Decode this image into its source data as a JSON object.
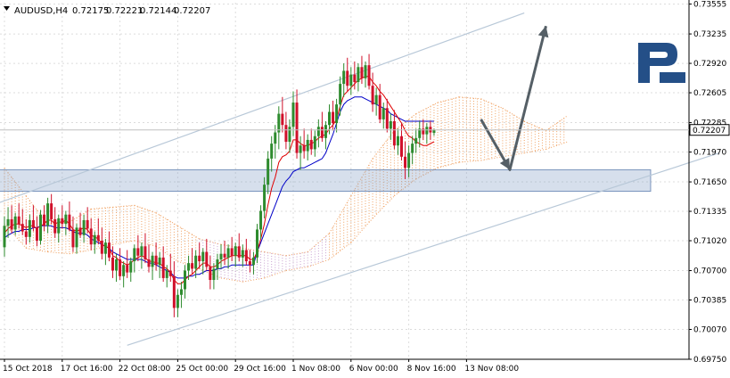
{
  "header": {
    "symbol": "AUDUSD,H4",
    "open": "0.72175",
    "high": "0.72221",
    "low": "0.72144",
    "close": "0.72207"
  },
  "logo": {
    "text": "R"
  },
  "colors": {
    "background": "#ffffff",
    "bull": "#2e8b2e",
    "bear": "#d0102a",
    "tenkan": "#e00000",
    "kijun": "#0000c8",
    "cloud_bull": "#f0a060",
    "cloud_bear": "#c8a0d0",
    "channel": "#b8c8d8",
    "zone": "#8aa4c8",
    "arrow": "#555f66",
    "logo": "#244f87",
    "price_box": "#ffffff"
  },
  "chart_data": {
    "type": "candlestick",
    "instrument": "AUDUSD",
    "timeframe": "H4",
    "current_price": "0.72207",
    "ylim": [
      0.6975,
      0.7357
    ],
    "yticks": [
      "0.73555",
      "0.73235",
      "0.72920",
      "0.72605",
      "0.72285",
      "0.71970",
      "0.71650",
      "0.71335",
      "0.71020",
      "0.70700",
      "0.70385",
      "0.70070",
      "0.69750"
    ],
    "xticks": [
      "15 Oct 2018",
      "17 Oct 16:00",
      "22 Oct 08:00",
      "25 Oct 00:00",
      "29 Oct 16:00",
      "1 Nov 08:00",
      "6 Nov 00:00",
      "8 Nov 16:00",
      "13 Nov 08:00"
    ],
    "xtick_index": [
      0,
      16,
      32,
      48,
      64,
      80,
      96,
      112,
      128
    ],
    "candles": [
      [
        0.7095,
        0.7128,
        0.7085,
        0.7118
      ],
      [
        0.7118,
        0.7138,
        0.7105,
        0.7125
      ],
      [
        0.7125,
        0.714,
        0.711,
        0.7114
      ],
      [
        0.7114,
        0.7132,
        0.7108,
        0.7128
      ],
      [
        0.7128,
        0.7142,
        0.7115,
        0.712
      ],
      [
        0.712,
        0.7136,
        0.7108,
        0.7112
      ],
      [
        0.7112,
        0.7125,
        0.7098,
        0.7106
      ],
      [
        0.7106,
        0.713,
        0.71,
        0.7124
      ],
      [
        0.7124,
        0.714,
        0.7112,
        0.7116
      ],
      [
        0.7116,
        0.7128,
        0.7096,
        0.7102
      ],
      [
        0.7102,
        0.7135,
        0.7098,
        0.713
      ],
      [
        0.713,
        0.714,
        0.7112,
        0.7118
      ],
      [
        0.7118,
        0.7148,
        0.711,
        0.7142
      ],
      [
        0.7142,
        0.7152,
        0.712,
        0.7125
      ],
      [
        0.7125,
        0.7138,
        0.7105,
        0.711
      ],
      [
        0.711,
        0.713,
        0.71,
        0.7126
      ],
      [
        0.7126,
        0.714,
        0.7115,
        0.712
      ],
      [
        0.712,
        0.7134,
        0.7108,
        0.713
      ],
      [
        0.713,
        0.7144,
        0.7112,
        0.7114
      ],
      [
        0.7114,
        0.7128,
        0.709,
        0.7095
      ],
      [
        0.7095,
        0.712,
        0.7088,
        0.7116
      ],
      [
        0.7116,
        0.7132,
        0.7105,
        0.7108
      ],
      [
        0.7108,
        0.713,
        0.71,
        0.7124
      ],
      [
        0.7124,
        0.7138,
        0.711,
        0.7115
      ],
      [
        0.7115,
        0.7126,
        0.7092,
        0.7098
      ],
      [
        0.7098,
        0.7112,
        0.7088,
        0.7108
      ],
      [
        0.7108,
        0.7126,
        0.7098,
        0.7102
      ],
      [
        0.7102,
        0.7116,
        0.7082,
        0.7088
      ],
      [
        0.7088,
        0.7104,
        0.7076,
        0.71
      ],
      [
        0.71,
        0.7112,
        0.708,
        0.7084
      ],
      [
        0.7084,
        0.7096,
        0.7062,
        0.707
      ],
      [
        0.707,
        0.7088,
        0.7058,
        0.7082
      ],
      [
        0.7082,
        0.7094,
        0.706,
        0.7064
      ],
      [
        0.7064,
        0.708,
        0.7052,
        0.7076
      ],
      [
        0.7076,
        0.7092,
        0.7062,
        0.7068
      ],
      [
        0.7068,
        0.7084,
        0.7058,
        0.708
      ],
      [
        0.708,
        0.7098,
        0.7068,
        0.7094
      ],
      [
        0.7094,
        0.7108,
        0.708,
        0.7086
      ],
      [
        0.7086,
        0.71,
        0.7072,
        0.7096
      ],
      [
        0.7096,
        0.711,
        0.7078,
        0.7082
      ],
      [
        0.7082,
        0.7098,
        0.7068,
        0.7074
      ],
      [
        0.7074,
        0.709,
        0.706,
        0.7086
      ],
      [
        0.7086,
        0.71,
        0.707,
        0.7076
      ],
      [
        0.7076,
        0.709,
        0.7062,
        0.7084
      ],
      [
        0.7084,
        0.7096,
        0.7058,
        0.7062
      ],
      [
        0.7062,
        0.7076,
        0.7052,
        0.707
      ],
      [
        0.707,
        0.7088,
        0.7058,
        0.7064
      ],
      [
        0.7064,
        0.708,
        0.702,
        0.703
      ],
      [
        0.703,
        0.705,
        0.702,
        0.7044
      ],
      [
        0.7044,
        0.7058,
        0.703,
        0.705
      ],
      [
        0.705,
        0.7076,
        0.704,
        0.707
      ],
      [
        0.707,
        0.7086,
        0.706,
        0.7078
      ],
      [
        0.7078,
        0.7094,
        0.7066,
        0.7072
      ],
      [
        0.7072,
        0.7092,
        0.7062,
        0.7086
      ],
      [
        0.7086,
        0.71,
        0.7072,
        0.708
      ],
      [
        0.708,
        0.7094,
        0.7066,
        0.709
      ],
      [
        0.709,
        0.7104,
        0.707,
        0.7074
      ],
      [
        0.7074,
        0.7086,
        0.705,
        0.706
      ],
      [
        0.706,
        0.7078,
        0.705,
        0.7072
      ],
      [
        0.7072,
        0.7088,
        0.706,
        0.7082
      ],
      [
        0.7082,
        0.7098,
        0.7072,
        0.7088
      ],
      [
        0.7088,
        0.7102,
        0.7076,
        0.7084
      ],
      [
        0.7084,
        0.7098,
        0.7072,
        0.7094
      ],
      [
        0.7094,
        0.7106,
        0.708,
        0.7086
      ],
      [
        0.7086,
        0.71,
        0.7074,
        0.7096
      ],
      [
        0.7096,
        0.711,
        0.708,
        0.7084
      ],
      [
        0.7084,
        0.7098,
        0.7074,
        0.7092
      ],
      [
        0.7092,
        0.7104,
        0.7076,
        0.708
      ],
      [
        0.708,
        0.7092,
        0.7068,
        0.7076
      ],
      [
        0.7076,
        0.709,
        0.7066,
        0.7084
      ],
      [
        0.7084,
        0.712,
        0.7078,
        0.7114
      ],
      [
        0.7114,
        0.714,
        0.7104,
        0.7134
      ],
      [
        0.7134,
        0.717,
        0.7126,
        0.7162
      ],
      [
        0.7162,
        0.7198,
        0.7152,
        0.719
      ],
      [
        0.719,
        0.7214,
        0.7176,
        0.7206
      ],
      [
        0.7206,
        0.7226,
        0.719,
        0.7218
      ],
      [
        0.7218,
        0.7246,
        0.72,
        0.7238
      ],
      [
        0.7238,
        0.7256,
        0.7218,
        0.7226
      ],
      [
        0.7226,
        0.724,
        0.72,
        0.7208
      ],
      [
        0.7208,
        0.7232,
        0.7196,
        0.7224
      ],
      [
        0.7224,
        0.7262,
        0.7214,
        0.725
      ],
      [
        0.725,
        0.7264,
        0.719,
        0.7196
      ],
      [
        0.7196,
        0.7214,
        0.7178,
        0.7204
      ],
      [
        0.7204,
        0.7222,
        0.719,
        0.7198
      ],
      [
        0.7198,
        0.7216,
        0.7188,
        0.721
      ],
      [
        0.721,
        0.7222,
        0.7194,
        0.72
      ],
      [
        0.72,
        0.722,
        0.7192,
        0.7214
      ],
      [
        0.7214,
        0.7232,
        0.7202,
        0.7224
      ],
      [
        0.7224,
        0.724,
        0.7208,
        0.7212
      ],
      [
        0.7212,
        0.723,
        0.72,
        0.7226
      ],
      [
        0.7226,
        0.7248,
        0.7216,
        0.724
      ],
      [
        0.724,
        0.7252,
        0.722,
        0.7228
      ],
      [
        0.7228,
        0.7254,
        0.7218,
        0.7248
      ],
      [
        0.7248,
        0.7278,
        0.7236,
        0.727
      ],
      [
        0.727,
        0.7292,
        0.7256,
        0.7284
      ],
      [
        0.7284,
        0.7298,
        0.7262,
        0.7268
      ],
      [
        0.7268,
        0.7288,
        0.7258,
        0.728
      ],
      [
        0.728,
        0.7294,
        0.7264,
        0.7272
      ],
      [
        0.7272,
        0.7292,
        0.7262,
        0.7288
      ],
      [
        0.7288,
        0.73,
        0.727,
        0.7276
      ],
      [
        0.7276,
        0.7294,
        0.7266,
        0.729
      ],
      [
        0.729,
        0.7302,
        0.7264,
        0.7268
      ],
      [
        0.7268,
        0.7282,
        0.724,
        0.7248
      ],
      [
        0.7248,
        0.7266,
        0.7236,
        0.7258
      ],
      [
        0.7258,
        0.727,
        0.7228,
        0.7232
      ],
      [
        0.7232,
        0.725,
        0.7222,
        0.7244
      ],
      [
        0.7244,
        0.7254,
        0.7218,
        0.7222
      ],
      [
        0.7222,
        0.7238,
        0.721,
        0.723
      ],
      [
        0.723,
        0.7242,
        0.72,
        0.7204
      ],
      [
        0.7204,
        0.7222,
        0.7194,
        0.7214
      ],
      [
        0.7214,
        0.7228,
        0.7188,
        0.7192
      ],
      [
        0.7192,
        0.7208,
        0.7168,
        0.718
      ],
      [
        0.718,
        0.7204,
        0.717,
        0.7196
      ],
      [
        0.7196,
        0.7214,
        0.7184,
        0.7206
      ],
      [
        0.7206,
        0.7222,
        0.7196,
        0.7212
      ],
      [
        0.7212,
        0.723,
        0.7202,
        0.7222
      ],
      [
        0.7222,
        0.7232,
        0.721,
        0.7216
      ],
      [
        0.7216,
        0.7228,
        0.7206,
        0.7224
      ],
      [
        0.7224,
        0.723,
        0.721,
        0.7218
      ],
      [
        0.72175,
        0.72221,
        0.72144,
        0.72207
      ]
    ],
    "tenkan": [
      0.711,
      0.7115,
      0.7118,
      0.712,
      0.712,
      0.7118,
      0.7116,
      0.7118,
      0.7118,
      0.7115,
      0.7118,
      0.712,
      0.7124,
      0.7124,
      0.712,
      0.7122,
      0.7122,
      0.7124,
      0.712,
      0.7114,
      0.7112,
      0.7114,
      0.7116,
      0.7114,
      0.7108,
      0.7106,
      0.7104,
      0.7098,
      0.7096,
      0.7094,
      0.7086,
      0.7084,
      0.708,
      0.7078,
      0.7076,
      0.7078,
      0.7082,
      0.7084,
      0.7086,
      0.7084,
      0.708,
      0.708,
      0.7078,
      0.7078,
      0.7074,
      0.7072,
      0.7068,
      0.706,
      0.7056,
      0.7056,
      0.706,
      0.7064,
      0.7066,
      0.707,
      0.7074,
      0.7078,
      0.7078,
      0.7074,
      0.7074,
      0.7076,
      0.708,
      0.7082,
      0.7084,
      0.7086,
      0.7086,
      0.7086,
      0.7086,
      0.7086,
      0.7082,
      0.7082,
      0.709,
      0.7104,
      0.712,
      0.714,
      0.7158,
      0.717,
      0.7186,
      0.7192,
      0.7194,
      0.7198,
      0.721,
      0.721,
      0.7206,
      0.7204,
      0.7204,
      0.7206,
      0.7208,
      0.7212,
      0.7214,
      0.7216,
      0.7222,
      0.7226,
      0.7232,
      0.7246,
      0.7258,
      0.7262,
      0.7266,
      0.727,
      0.7274,
      0.7276,
      0.7278,
      0.7278,
      0.7272,
      0.7268,
      0.7262,
      0.7258,
      0.7252,
      0.7246,
      0.724,
      0.7234,
      0.7228,
      0.722,
      0.7214,
      0.7212,
      0.7208,
      0.7206,
      0.7204,
      0.7204,
      0.7206,
      0.7208
    ],
    "kijun": [
      0.7105,
      0.7108,
      0.711,
      0.7112,
      0.7112,
      0.7114,
      0.7114,
      0.7114,
      0.7116,
      0.7116,
      0.7118,
      0.7118,
      0.7118,
      0.7118,
      0.7116,
      0.7116,
      0.7116,
      0.7116,
      0.7114,
      0.7112,
      0.711,
      0.711,
      0.711,
      0.7108,
      0.7104,
      0.7102,
      0.71,
      0.7098,
      0.7096,
      0.7094,
      0.709,
      0.7088,
      0.7086,
      0.7084,
      0.7082,
      0.7082,
      0.7082,
      0.7082,
      0.7082,
      0.708,
      0.7078,
      0.7078,
      0.7076,
      0.7074,
      0.7072,
      0.707,
      0.7068,
      0.7064,
      0.7062,
      0.7062,
      0.7062,
      0.7064,
      0.7064,
      0.7066,
      0.7066,
      0.7068,
      0.707,
      0.707,
      0.707,
      0.7072,
      0.7072,
      0.7074,
      0.7074,
      0.7076,
      0.7076,
      0.7076,
      0.7076,
      0.7076,
      0.7076,
      0.7076,
      0.709,
      0.71,
      0.711,
      0.712,
      0.713,
      0.714,
      0.715,
      0.716,
      0.7166,
      0.717,
      0.7176,
      0.7178,
      0.718,
      0.718,
      0.7182,
      0.7184,
      0.7186,
      0.7188,
      0.719,
      0.7196,
      0.7206,
      0.7216,
      0.7228,
      0.724,
      0.7248,
      0.7252,
      0.7254,
      0.7256,
      0.7256,
      0.7256,
      0.7254,
      0.7252,
      0.725,
      0.7248,
      0.7246,
      0.7244,
      0.7242,
      0.7238,
      0.7236,
      0.7234,
      0.7232,
      0.723,
      0.723,
      0.723,
      0.723,
      0.723,
      0.723,
      0.723,
      0.723,
      0.723
    ],
    "cloud_spans": [
      [
        0,
        0.718,
        0.712
      ],
      [
        6,
        0.715,
        0.7094
      ],
      [
        12,
        0.712,
        0.709
      ],
      [
        18,
        0.7122,
        0.7088
      ],
      [
        24,
        0.7136,
        0.7092
      ],
      [
        30,
        0.7138,
        0.7098
      ],
      [
        36,
        0.714,
        0.7102
      ],
      [
        42,
        0.7132,
        0.7096
      ],
      [
        48,
        0.7118,
        0.708
      ],
      [
        54,
        0.7104,
        0.7072
      ],
      [
        60,
        0.7098,
        0.7062
      ],
      [
        66,
        0.7094,
        0.7058
      ],
      [
        72,
        0.709,
        0.7062
      ],
      [
        78,
        0.7086,
        0.707
      ],
      [
        84,
        0.709,
        0.7074
      ],
      [
        90,
        0.711,
        0.7082
      ],
      [
        96,
        0.715,
        0.71
      ],
      [
        102,
        0.719,
        0.7126
      ],
      [
        108,
        0.722,
        0.715
      ],
      [
        114,
        0.7238,
        0.7168
      ],
      [
        120,
        0.725,
        0.718
      ],
      [
        126,
        0.7256,
        0.7186
      ],
      [
        132,
        0.7254,
        0.7188
      ],
      [
        138,
        0.7244,
        0.7192
      ],
      [
        144,
        0.723,
        0.7196
      ],
      [
        150,
        0.722,
        0.72
      ],
      [
        156,
        0.7236,
        0.7208
      ]
    ],
    "channel_upper": [
      [
        -2,
        0.7142
      ],
      [
        144,
        0.7346
      ]
    ],
    "channel_lower": [
      [
        34,
        0.699
      ],
      [
        198,
        0.7196
      ]
    ],
    "support_zone": {
      "from": -9,
      "to": 179,
      "top": 0.7178,
      "bottom": 0.7155
    },
    "forecast_path": [
      [
        132,
        0.7232
      ],
      [
        140,
        0.7178
      ],
      [
        150,
        0.7332
      ]
    ]
  }
}
